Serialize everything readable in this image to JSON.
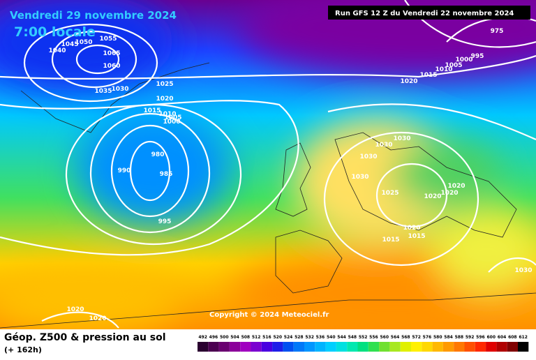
{
  "header": {
    "date": "Vendredi 29 novembre 2024",
    "time": "7:00 locale",
    "run": "Run GFS 12 Z du Vendredi 22 novembre 2024"
  },
  "copyright": "Copyright © 2024 Meteociel.fr",
  "footer": {
    "title": "Géop. Z500 & pression au sol",
    "lead": "(+ 162h)"
  },
  "isobar_labels": [
    "1040",
    "1045",
    "1050",
    "1055",
    "1065",
    "1060",
    "1035",
    "1030",
    "1025",
    "1020",
    "1015",
    "1010",
    "1005",
    "1000",
    "980",
    "990",
    "985",
    "995",
    "1020",
    "1015",
    "1010",
    "1005",
    "1000",
    "995",
    "975",
    "1030",
    "1030",
    "1030",
    "1030",
    "1025",
    "1020",
    "1020",
    "1020",
    "1020",
    "1015",
    "1015",
    "1030",
    "1020",
    "1020"
  ],
  "scale": {
    "ticks": [
      492,
      496,
      500,
      504,
      508,
      512,
      516,
      520,
      524,
      528,
      532,
      536,
      540,
      544,
      548,
      552,
      556,
      560,
      564,
      568,
      572,
      576,
      580,
      584,
      588,
      592,
      596,
      600,
      604,
      608,
      612
    ],
    "colors": [
      "#2a0030",
      "#4b0050",
      "#6a0070",
      "#8b009a",
      "#a000c0",
      "#7a00d0",
      "#4a00e0",
      "#1e1ee8",
      "#0050f0",
      "#0078f8",
      "#0096ff",
      "#00b4ff",
      "#00cfff",
      "#00e0e0",
      "#00e8b0",
      "#00e080",
      "#30e050",
      "#70e030",
      "#a8e820",
      "#e0f000",
      "#fff000",
      "#ffd800",
      "#ffb800",
      "#ff9a00",
      "#ff7800",
      "#ff5000",
      "#ff2800",
      "#e00000",
      "#b00000",
      "#800000",
      "#000000"
    ]
  }
}
